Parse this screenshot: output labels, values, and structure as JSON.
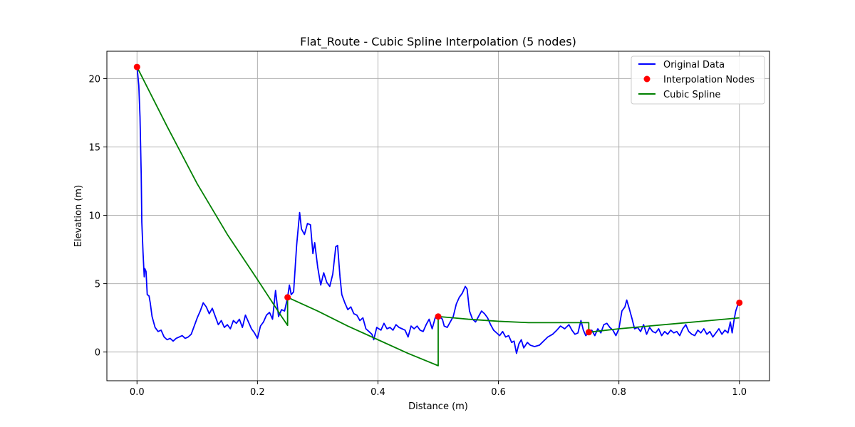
{
  "chart_data": {
    "type": "line",
    "title": "Flat_Route - Cubic Spline Interpolation (5 nodes)",
    "xlabel": "Distance (m)",
    "ylabel": "Elevation (m)",
    "xlim": [
      -0.05,
      1.05
    ],
    "ylim": [
      -2.1,
      22
    ],
    "x_ticks": [
      0.0,
      0.2,
      0.4,
      0.6,
      0.8,
      1.0
    ],
    "x_tick_labels": [
      "0.0",
      "0.2",
      "0.4",
      "0.6",
      "0.8",
      "1.0"
    ],
    "y_ticks": [
      0,
      5,
      10,
      15,
      20
    ],
    "y_tick_labels": [
      "0",
      "5",
      "10",
      "15",
      "20"
    ],
    "grid": true,
    "legend_position": "top-right",
    "series": [
      {
        "name": "Original Data",
        "kind": "line",
        "color": "#0000ff",
        "points": [
          [
            0.0,
            20.9
          ],
          [
            0.003,
            19.5
          ],
          [
            0.005,
            17.2
          ],
          [
            0.007,
            13.0
          ],
          [
            0.008,
            9.5
          ],
          [
            0.01,
            7.3
          ],
          [
            0.012,
            5.5
          ],
          [
            0.013,
            6.1
          ],
          [
            0.015,
            5.9
          ],
          [
            0.017,
            4.2
          ],
          [
            0.02,
            4.1
          ],
          [
            0.022,
            3.6
          ],
          [
            0.025,
            2.6
          ],
          [
            0.03,
            1.8
          ],
          [
            0.035,
            1.5
          ],
          [
            0.04,
            1.6
          ],
          [
            0.045,
            1.1
          ],
          [
            0.05,
            0.9
          ],
          [
            0.055,
            1.0
          ],
          [
            0.06,
            0.8
          ],
          [
            0.065,
            1.0
          ],
          [
            0.07,
            1.1
          ],
          [
            0.075,
            1.2
          ],
          [
            0.08,
            1.0
          ],
          [
            0.085,
            1.1
          ],
          [
            0.09,
            1.3
          ],
          [
            0.095,
            1.9
          ],
          [
            0.1,
            2.5
          ],
          [
            0.105,
            3.0
          ],
          [
            0.11,
            3.6
          ],
          [
            0.115,
            3.3
          ],
          [
            0.12,
            2.8
          ],
          [
            0.125,
            3.2
          ],
          [
            0.13,
            2.6
          ],
          [
            0.135,
            2.0
          ],
          [
            0.14,
            2.3
          ],
          [
            0.145,
            1.8
          ],
          [
            0.15,
            2.0
          ],
          [
            0.155,
            1.7
          ],
          [
            0.16,
            2.3
          ],
          [
            0.165,
            2.1
          ],
          [
            0.17,
            2.4
          ],
          [
            0.175,
            1.8
          ],
          [
            0.18,
            2.7
          ],
          [
            0.185,
            2.2
          ],
          [
            0.19,
            1.7
          ],
          [
            0.195,
            1.4
          ],
          [
            0.2,
            1.0
          ],
          [
            0.205,
            1.9
          ],
          [
            0.21,
            2.2
          ],
          [
            0.215,
            2.7
          ],
          [
            0.22,
            2.9
          ],
          [
            0.225,
            2.4
          ],
          [
            0.23,
            4.5
          ],
          [
            0.235,
            2.6
          ],
          [
            0.24,
            3.1
          ],
          [
            0.245,
            3.0
          ],
          [
            0.25,
            4.0
          ],
          [
            0.253,
            4.9
          ],
          [
            0.256,
            4.2
          ],
          [
            0.26,
            4.4
          ],
          [
            0.265,
            7.8
          ],
          [
            0.27,
            10.2
          ],
          [
            0.273,
            9.0
          ],
          [
            0.278,
            8.6
          ],
          [
            0.283,
            9.4
          ],
          [
            0.288,
            9.3
          ],
          [
            0.292,
            7.2
          ],
          [
            0.295,
            8.0
          ],
          [
            0.3,
            6.2
          ],
          [
            0.305,
            4.9
          ],
          [
            0.31,
            5.8
          ],
          [
            0.315,
            5.1
          ],
          [
            0.32,
            4.8
          ],
          [
            0.325,
            5.7
          ],
          [
            0.33,
            7.7
          ],
          [
            0.333,
            7.8
          ],
          [
            0.337,
            5.5
          ],
          [
            0.34,
            4.2
          ],
          [
            0.345,
            3.6
          ],
          [
            0.35,
            3.1
          ],
          [
            0.355,
            3.3
          ],
          [
            0.36,
            2.8
          ],
          [
            0.365,
            2.7
          ],
          [
            0.37,
            2.3
          ],
          [
            0.375,
            2.5
          ],
          [
            0.38,
            1.7
          ],
          [
            0.385,
            1.5
          ],
          [
            0.39,
            1.3
          ],
          [
            0.393,
            0.9
          ],
          [
            0.398,
            1.8
          ],
          [
            0.405,
            1.6
          ],
          [
            0.41,
            2.1
          ],
          [
            0.415,
            1.7
          ],
          [
            0.42,
            1.8
          ],
          [
            0.425,
            1.6
          ],
          [
            0.43,
            2.0
          ],
          [
            0.435,
            1.8
          ],
          [
            0.44,
            1.7
          ],
          [
            0.445,
            1.6
          ],
          [
            0.45,
            1.1
          ],
          [
            0.455,
            1.9
          ],
          [
            0.46,
            1.7
          ],
          [
            0.465,
            1.9
          ],
          [
            0.47,
            1.6
          ],
          [
            0.475,
            1.5
          ],
          [
            0.48,
            2.0
          ],
          [
            0.485,
            2.4
          ],
          [
            0.49,
            1.7
          ],
          [
            0.495,
            2.5
          ],
          [
            0.498,
            2.7
          ],
          [
            0.502,
            2.6
          ],
          [
            0.507,
            2.4
          ],
          [
            0.51,
            1.9
          ],
          [
            0.515,
            1.8
          ],
          [
            0.52,
            2.2
          ],
          [
            0.525,
            2.6
          ],
          [
            0.53,
            3.5
          ],
          [
            0.535,
            4.0
          ],
          [
            0.54,
            4.3
          ],
          [
            0.545,
            4.8
          ],
          [
            0.548,
            4.6
          ],
          [
            0.552,
            3.0
          ],
          [
            0.557,
            2.4
          ],
          [
            0.562,
            2.2
          ],
          [
            0.567,
            2.6
          ],
          [
            0.572,
            3.0
          ],
          [
            0.577,
            2.8
          ],
          [
            0.582,
            2.5
          ],
          [
            0.587,
            2.0
          ],
          [
            0.592,
            1.6
          ],
          [
            0.597,
            1.4
          ],
          [
            0.602,
            1.2
          ],
          [
            0.607,
            1.5
          ],
          [
            0.612,
            1.1
          ],
          [
            0.617,
            1.2
          ],
          [
            0.622,
            0.7
          ],
          [
            0.626,
            0.8
          ],
          [
            0.63,
            -0.1
          ],
          [
            0.634,
            0.6
          ],
          [
            0.638,
            0.9
          ],
          [
            0.642,
            0.3
          ],
          [
            0.648,
            0.7
          ],
          [
            0.653,
            0.5
          ],
          [
            0.66,
            0.4
          ],
          [
            0.668,
            0.5
          ],
          [
            0.675,
            0.8
          ],
          [
            0.682,
            1.1
          ],
          [
            0.69,
            1.3
          ],
          [
            0.697,
            1.6
          ],
          [
            0.703,
            1.9
          ],
          [
            0.71,
            1.7
          ],
          [
            0.717,
            2.0
          ],
          [
            0.722,
            1.6
          ],
          [
            0.727,
            1.3
          ],
          [
            0.732,
            1.4
          ],
          [
            0.737,
            2.3
          ],
          [
            0.741,
            1.6
          ],
          [
            0.745,
            1.2
          ],
          [
            0.75,
            1.4
          ],
          [
            0.755,
            1.6
          ],
          [
            0.76,
            1.2
          ],
          [
            0.765,
            1.7
          ],
          [
            0.77,
            1.4
          ],
          [
            0.775,
            2.0
          ],
          [
            0.78,
            2.1
          ],
          [
            0.785,
            1.8
          ],
          [
            0.79,
            1.6
          ],
          [
            0.795,
            1.2
          ],
          [
            0.8,
            1.7
          ],
          [
            0.805,
            3.0
          ],
          [
            0.81,
            3.3
          ],
          [
            0.813,
            3.8
          ],
          [
            0.817,
            3.2
          ],
          [
            0.822,
            2.4
          ],
          [
            0.826,
            1.7
          ],
          [
            0.831,
            1.8
          ],
          [
            0.836,
            1.5
          ],
          [
            0.841,
            2.0
          ],
          [
            0.846,
            1.3
          ],
          [
            0.851,
            1.8
          ],
          [
            0.856,
            1.5
          ],
          [
            0.861,
            1.4
          ],
          [
            0.866,
            1.7
          ],
          [
            0.871,
            1.2
          ],
          [
            0.876,
            1.5
          ],
          [
            0.881,
            1.3
          ],
          [
            0.886,
            1.6
          ],
          [
            0.891,
            1.4
          ],
          [
            0.896,
            1.5
          ],
          [
            0.901,
            1.2
          ],
          [
            0.906,
            1.7
          ],
          [
            0.911,
            2.0
          ],
          [
            0.916,
            1.5
          ],
          [
            0.921,
            1.3
          ],
          [
            0.926,
            1.2
          ],
          [
            0.931,
            1.6
          ],
          [
            0.936,
            1.4
          ],
          [
            0.941,
            1.7
          ],
          [
            0.946,
            1.3
          ],
          [
            0.951,
            1.5
          ],
          [
            0.956,
            1.1
          ],
          [
            0.961,
            1.4
          ],
          [
            0.966,
            1.7
          ],
          [
            0.971,
            1.3
          ],
          [
            0.976,
            1.6
          ],
          [
            0.981,
            1.4
          ],
          [
            0.985,
            2.2
          ],
          [
            0.988,
            1.4
          ],
          [
            0.991,
            2.3
          ],
          [
            0.994,
            3.0
          ],
          [
            0.997,
            3.4
          ],
          [
            1.0,
            3.6
          ]
        ]
      },
      {
        "name": "Interpolation Nodes",
        "kind": "scatter",
        "color": "#ff0000",
        "points": [
          [
            0.0,
            20.85
          ],
          [
            0.25,
            4.0
          ],
          [
            0.5,
            2.6
          ],
          [
            0.75,
            1.45
          ],
          [
            1.0,
            3.6
          ]
        ]
      },
      {
        "name": "Cubic Spline",
        "kind": "line",
        "color": "#008000",
        "points": [
          [
            0.0,
            20.85
          ],
          [
            0.05,
            16.5
          ],
          [
            0.1,
            12.3
          ],
          [
            0.15,
            8.6
          ],
          [
            0.2,
            5.3
          ],
          [
            0.24,
            2.6
          ],
          [
            0.25,
            1.95
          ],
          [
            0.25,
            4.0
          ],
          [
            0.3,
            3.0
          ],
          [
            0.35,
            1.9
          ],
          [
            0.4,
            0.9
          ],
          [
            0.45,
            -0.1
          ],
          [
            0.5,
            -1.0
          ],
          [
            0.5,
            2.6
          ],
          [
            0.55,
            2.4
          ],
          [
            0.6,
            2.25
          ],
          [
            0.65,
            2.15
          ],
          [
            0.7,
            2.15
          ],
          [
            0.75,
            2.15
          ],
          [
            0.75,
            1.45
          ],
          [
            0.8,
            1.7
          ],
          [
            0.85,
            1.9
          ],
          [
            0.9,
            2.1
          ],
          [
            0.95,
            2.3
          ],
          [
            1.0,
            2.5
          ]
        ]
      }
    ]
  }
}
